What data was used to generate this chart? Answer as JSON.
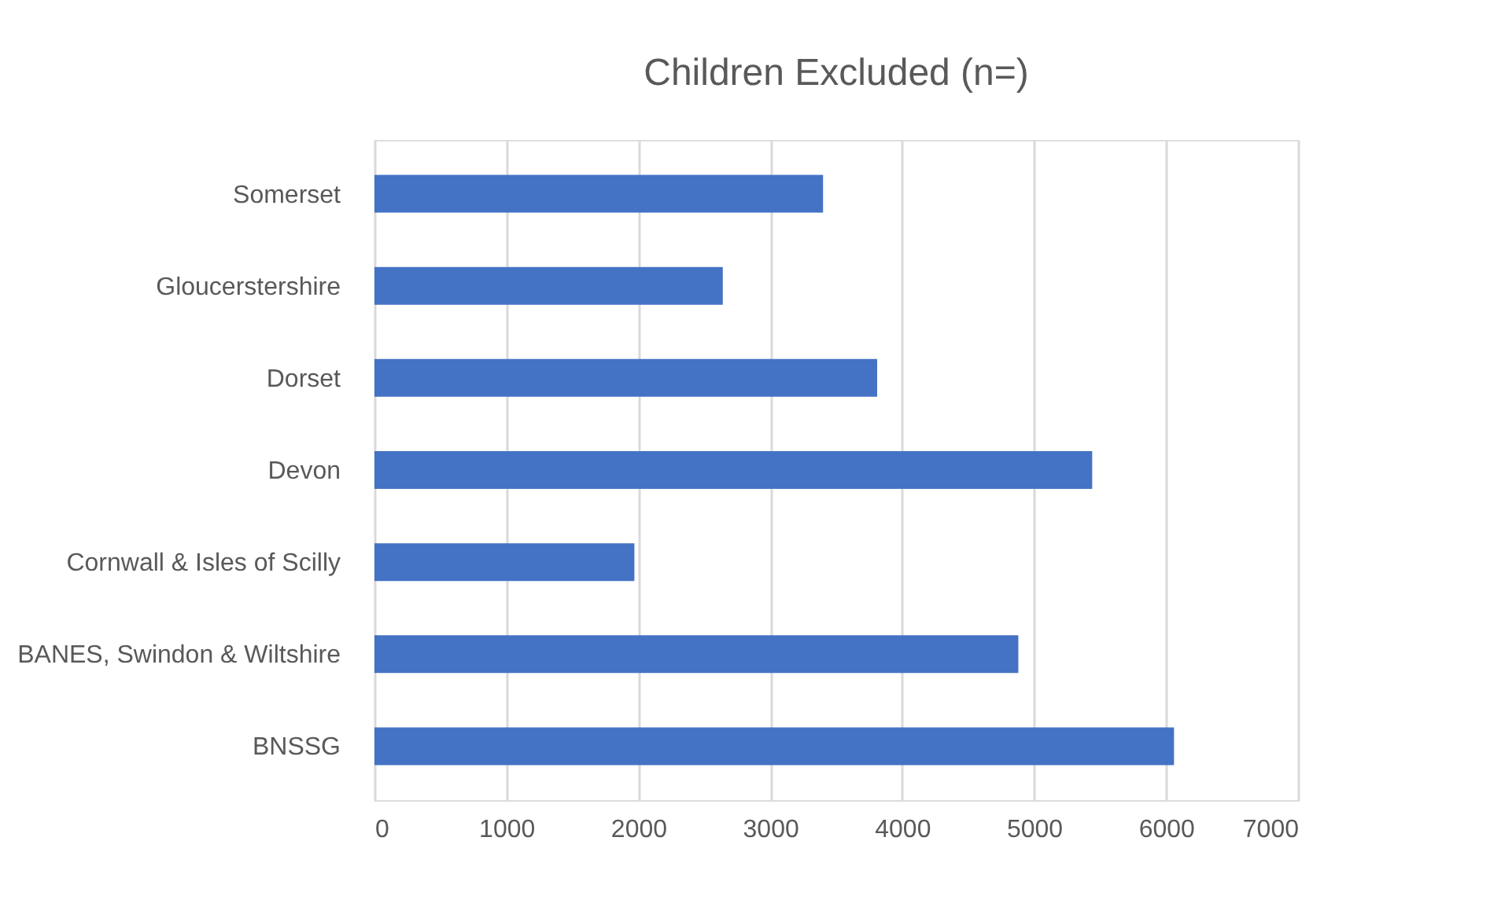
{
  "chart_data": {
    "type": "bar",
    "orientation": "horizontal",
    "title": "Children Excluded (n=)",
    "categories": [
      "Somerset",
      "Gloucerstershire",
      "Dorset",
      "Devon",
      "Cornwall & Isles of Scilly",
      "BANES, Swindon & Wiltshire",
      "BNSSG"
    ],
    "values": [
      3400,
      2640,
      3810,
      5440,
      1970,
      4880,
      6060
    ],
    "color": "#4472c4",
    "xlim": [
      0,
      7000
    ],
    "xticks": [
      0,
      1000,
      2000,
      3000,
      4000,
      5000,
      6000,
      7000
    ],
    "grid": "x"
  }
}
